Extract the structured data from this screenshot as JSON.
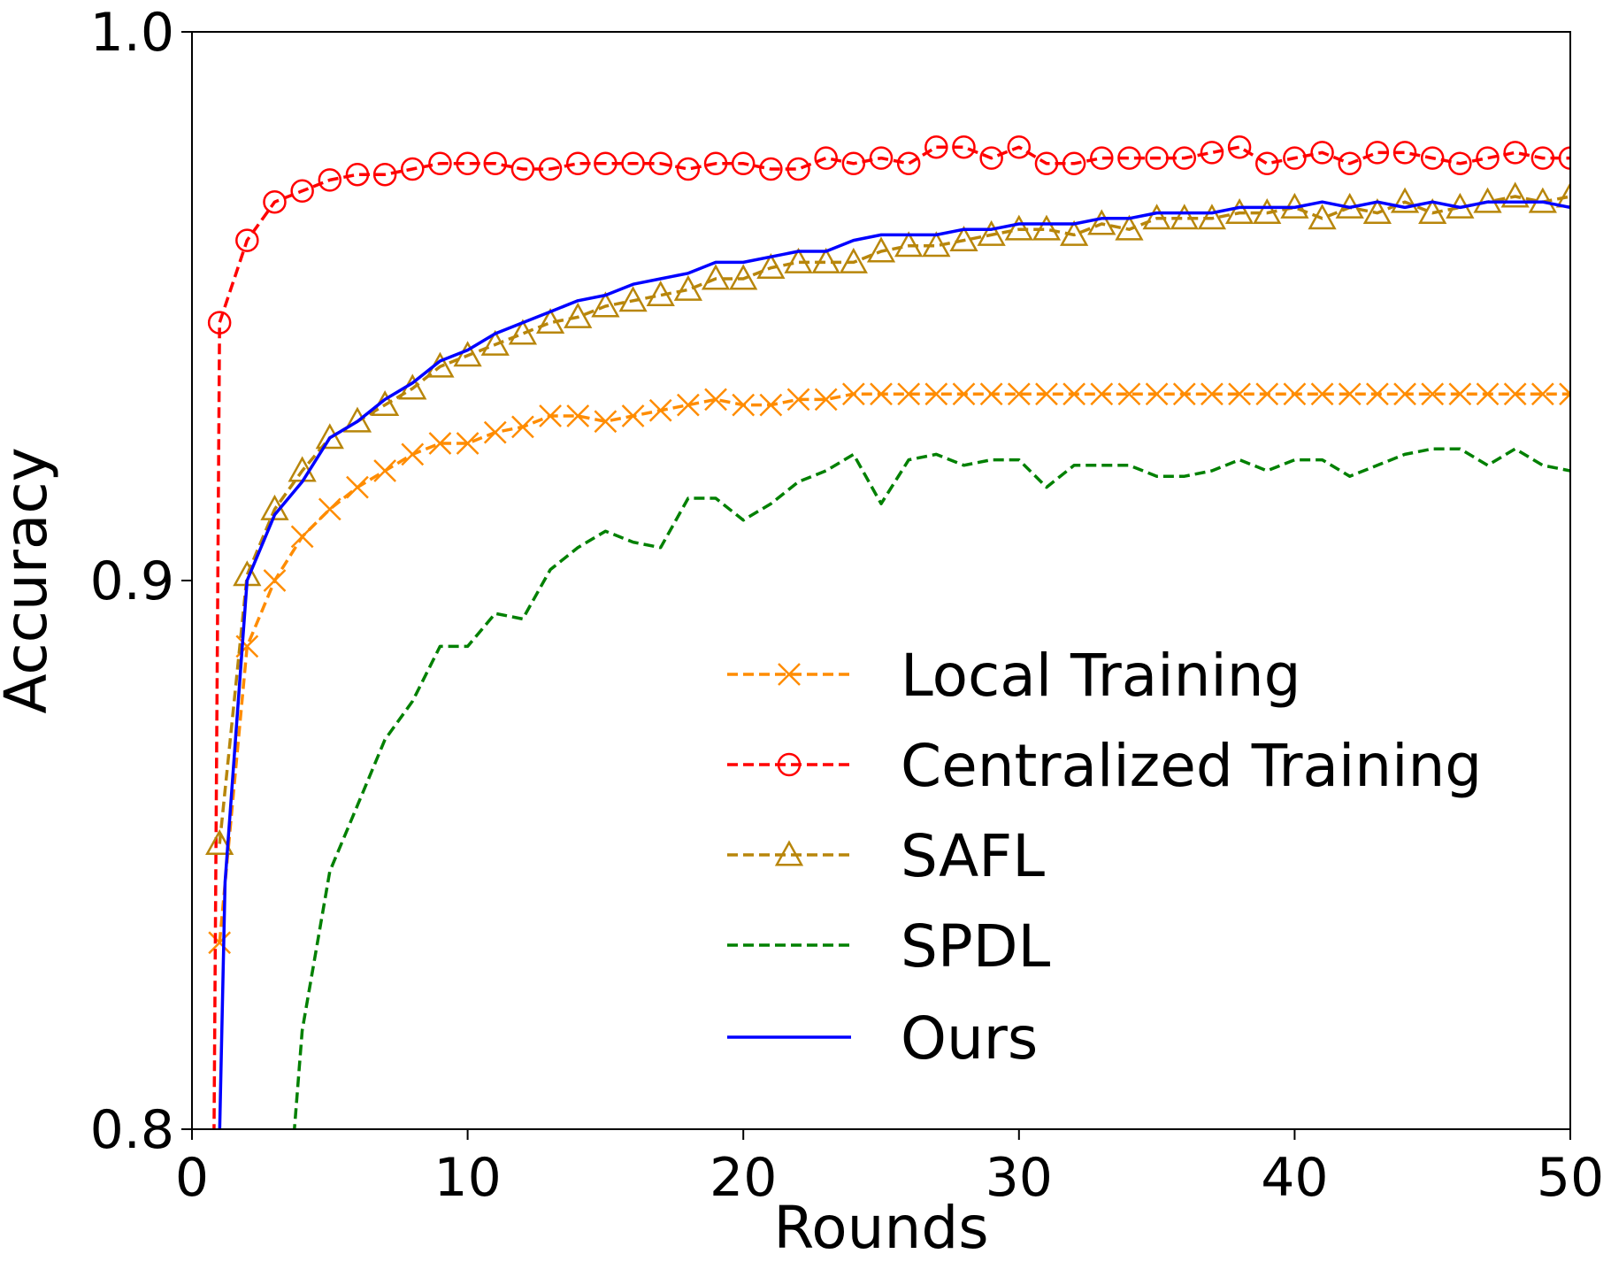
{
  "chart_data": {
    "type": "line",
    "title": "",
    "xlabel": "Rounds",
    "ylabel": "Accuracy",
    "xlim": [
      0,
      50
    ],
    "ylim": [
      0.8,
      1.0
    ],
    "xticks": [
      0,
      10,
      20,
      30,
      40,
      50
    ],
    "xtick_labels": [
      "0",
      "10",
      "20",
      "30",
      "40",
      "50"
    ],
    "yticks": [
      0.8,
      0.9,
      1.0
    ],
    "ytick_labels": [
      "0.8",
      "0.9",
      "1.0"
    ],
    "grid": false,
    "legend_position": "lower-right",
    "series": [
      {
        "name": "Local Training",
        "color": "#ff8c00",
        "line_style": "dashed",
        "marker": "x",
        "x": [
          1,
          2,
          3,
          4,
          5,
          6,
          7,
          8,
          9,
          10,
          11,
          12,
          13,
          14,
          15,
          16,
          17,
          18,
          19,
          20,
          21,
          22,
          23,
          24,
          25,
          26,
          27,
          28,
          29,
          30,
          31,
          32,
          33,
          34,
          35,
          36,
          37,
          38,
          39,
          40,
          41,
          42,
          43,
          44,
          45,
          46,
          47,
          48,
          49,
          50
        ],
        "values": [
          0.834,
          0.888,
          0.9,
          0.908,
          0.913,
          0.917,
          0.92,
          0.923,
          0.925,
          0.925,
          0.927,
          0.928,
          0.93,
          0.93,
          0.929,
          0.93,
          0.931,
          0.932,
          0.933,
          0.932,
          0.932,
          0.933,
          0.933,
          0.934,
          0.934,
          0.934,
          0.934,
          0.934,
          0.934,
          0.934,
          0.934,
          0.934,
          0.934,
          0.934,
          0.934,
          0.934,
          0.934,
          0.934,
          0.934,
          0.934,
          0.934,
          0.934,
          0.934,
          0.934,
          0.934,
          0.934,
          0.934,
          0.934,
          0.934,
          0.934
        ]
      },
      {
        "name": "Centralized Training",
        "color": "#ff0000",
        "line_style": "dashed",
        "marker": "circle",
        "x": [
          0.8,
          1,
          2,
          3,
          4,
          5,
          6,
          7,
          8,
          9,
          10,
          11,
          12,
          13,
          14,
          15,
          16,
          17,
          18,
          19,
          20,
          21,
          22,
          23,
          24,
          25,
          26,
          27,
          28,
          29,
          30,
          31,
          32,
          33,
          34,
          35,
          36,
          37,
          38,
          39,
          40,
          41,
          42,
          43,
          44,
          45,
          46,
          47,
          48,
          49,
          50
        ],
        "marker_from": 1,
        "values": [
          0.799,
          0.947,
          0.962,
          0.969,
          0.971,
          0.973,
          0.974,
          0.974,
          0.975,
          0.976,
          0.976,
          0.976,
          0.975,
          0.975,
          0.976,
          0.976,
          0.976,
          0.976,
          0.975,
          0.976,
          0.976,
          0.975,
          0.975,
          0.977,
          0.976,
          0.977,
          0.976,
          0.979,
          0.979,
          0.977,
          0.979,
          0.976,
          0.976,
          0.977,
          0.977,
          0.977,
          0.977,
          0.978,
          0.979,
          0.976,
          0.977,
          0.978,
          0.976,
          0.978,
          0.978,
          0.977,
          0.976,
          0.977,
          0.978,
          0.977,
          0.977
        ]
      },
      {
        "name": "SAFL",
        "color": "#b8860b",
        "line_style": "dashed",
        "marker": "triangle",
        "x": [
          1,
          2,
          3,
          4,
          5,
          6,
          7,
          8,
          9,
          10,
          11,
          12,
          13,
          14,
          15,
          16,
          17,
          18,
          19,
          20,
          21,
          22,
          23,
          24,
          25,
          26,
          27,
          28,
          29,
          30,
          31,
          32,
          33,
          34,
          35,
          36,
          37,
          38,
          39,
          40,
          41,
          42,
          43,
          44,
          45,
          46,
          47,
          48,
          49,
          50
        ],
        "values": [
          0.852,
          0.901,
          0.913,
          0.92,
          0.926,
          0.929,
          0.932,
          0.935,
          0.939,
          0.941,
          0.943,
          0.945,
          0.947,
          0.948,
          0.95,
          0.951,
          0.952,
          0.953,
          0.955,
          0.955,
          0.957,
          0.958,
          0.958,
          0.958,
          0.96,
          0.961,
          0.961,
          0.962,
          0.963,
          0.964,
          0.964,
          0.963,
          0.965,
          0.964,
          0.966,
          0.966,
          0.966,
          0.967,
          0.967,
          0.968,
          0.966,
          0.968,
          0.967,
          0.969,
          0.967,
          0.968,
          0.969,
          0.97,
          0.969,
          0.97
        ]
      },
      {
        "name": "SPDL",
        "color": "#008000",
        "line_style": "dashed",
        "marker": "none",
        "x": [
          3.7,
          4,
          5,
          6,
          7,
          8,
          9,
          10,
          11,
          12,
          13,
          14,
          15,
          16,
          17,
          18,
          19,
          20,
          21,
          22,
          23,
          24,
          25,
          26,
          27,
          28,
          29,
          30,
          31,
          32,
          33,
          34,
          35,
          36,
          37,
          38,
          39,
          40,
          41,
          42,
          43,
          44,
          45,
          46,
          47,
          48,
          49,
          50
        ],
        "values": [
          0.799,
          0.818,
          0.847,
          0.859,
          0.871,
          0.878,
          0.888,
          0.888,
          0.894,
          0.893,
          0.902,
          0.906,
          0.909,
          0.907,
          0.906,
          0.915,
          0.915,
          0.911,
          0.914,
          0.918,
          0.92,
          0.923,
          0.914,
          0.922,
          0.923,
          0.921,
          0.922,
          0.922,
          0.917,
          0.921,
          0.921,
          0.921,
          0.919,
          0.919,
          0.92,
          0.922,
          0.92,
          0.922,
          0.922,
          0.919,
          0.921,
          0.923,
          0.924,
          0.924,
          0.921,
          0.924,
          0.921,
          0.92
        ]
      },
      {
        "name": "Ours",
        "color": "#0000ff",
        "line_style": "solid",
        "marker": "none",
        "x": [
          1,
          1.2,
          2,
          3,
          4,
          5,
          6,
          7,
          8,
          9,
          10,
          11,
          12,
          13,
          14,
          15,
          16,
          17,
          18,
          19,
          20,
          21,
          22,
          23,
          24,
          25,
          26,
          27,
          28,
          29,
          30,
          31,
          32,
          33,
          34,
          35,
          36,
          37,
          38,
          39,
          40,
          41,
          42,
          43,
          44,
          45,
          46,
          47,
          48,
          49,
          50
        ],
        "values": [
          0.799,
          0.845,
          0.9,
          0.912,
          0.918,
          0.926,
          0.929,
          0.933,
          0.936,
          0.94,
          0.942,
          0.945,
          0.947,
          0.949,
          0.951,
          0.952,
          0.954,
          0.955,
          0.956,
          0.958,
          0.958,
          0.959,
          0.96,
          0.96,
          0.962,
          0.963,
          0.963,
          0.963,
          0.964,
          0.964,
          0.965,
          0.965,
          0.965,
          0.966,
          0.966,
          0.967,
          0.967,
          0.967,
          0.968,
          0.968,
          0.968,
          0.969,
          0.968,
          0.969,
          0.968,
          0.969,
          0.968,
          0.969,
          0.969,
          0.969,
          0.968
        ]
      }
    ]
  }
}
